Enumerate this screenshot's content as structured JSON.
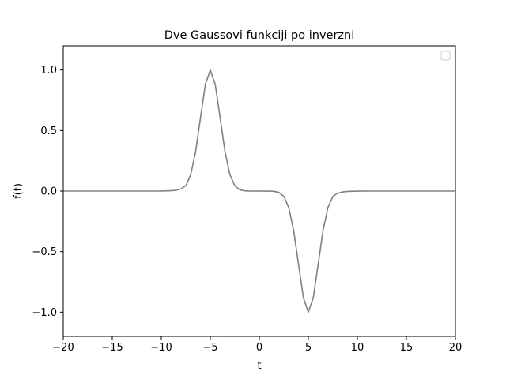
{
  "chart_data": {
    "type": "line",
    "title": "Dve Gaussovi funkciji po inverzni",
    "xlabel": "t",
    "ylabel": "f(t)",
    "xlim": [
      -20,
      20
    ],
    "ylim": [
      -1.2,
      1.2
    ],
    "xticks": [
      -20,
      -15,
      -10,
      -5,
      0,
      5,
      10,
      15,
      20
    ],
    "xtick_labels": [
      "−20",
      "−15",
      "−10",
      "−5",
      "0",
      "5",
      "10",
      "15",
      "20"
    ],
    "yticks": [
      -1.0,
      -0.5,
      0.0,
      0.5,
      1.0
    ],
    "ytick_labels": [
      "−1.0",
      "−0.5",
      "0.0",
      "0.5",
      "1.0"
    ],
    "grid": false,
    "legend": {
      "placement": "top-right",
      "entries": []
    },
    "series": [
      {
        "color": "#808080",
        "x": [
          -20,
          -11,
          -10,
          -9,
          -8.5,
          -8,
          -7.5,
          -7,
          -6.5,
          -6,
          -5.5,
          -5,
          -4.5,
          -4,
          -3.5,
          -3,
          -2.5,
          -2,
          -1.5,
          -1,
          0,
          1,
          1.5,
          2,
          2.5,
          3,
          3.5,
          4,
          4.5,
          5,
          5.5,
          6,
          6.5,
          7,
          7.5,
          8,
          8.5,
          9,
          10,
          11,
          20
        ],
        "y": [
          0,
          0,
          0.0003,
          0.0028,
          0.0072,
          0.0171,
          0.0439,
          0.1353,
          0.3247,
          0.6065,
          0.8825,
          1.0,
          0.8825,
          0.6065,
          0.3247,
          0.1353,
          0.0439,
          0.0111,
          0.0022,
          0.0003,
          0,
          -0.0003,
          -0.0022,
          -0.0111,
          -0.0439,
          -0.1353,
          -0.3247,
          -0.6065,
          -0.8825,
          -1.0,
          -0.8825,
          -0.6065,
          -0.3247,
          -0.1353,
          -0.0439,
          -0.0171,
          -0.0072,
          -0.0028,
          -0.0003,
          0,
          0
        ]
      }
    ]
  }
}
